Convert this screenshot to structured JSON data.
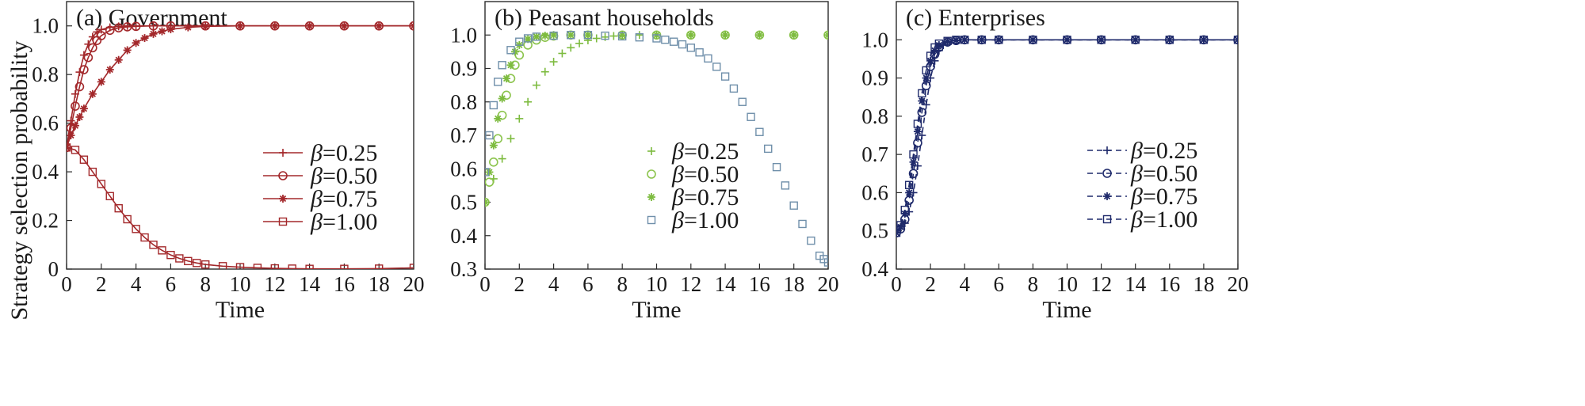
{
  "figure": {
    "ylabel": "Strategy selection probability"
  },
  "chart_data": [
    {
      "type": "line",
      "panel": "a",
      "title": "(a) Government",
      "xlabel": "Time",
      "ylabel": "Strategy selection probability",
      "xlim": [
        0,
        20
      ],
      "ylim": [
        0,
        1.1
      ],
      "xticks": [
        "0",
        "2",
        "4",
        "6",
        "8",
        "10",
        "12",
        "14",
        "16",
        "18",
        "20"
      ],
      "yticks": [
        "0",
        "0.2",
        "0.4",
        "0.6",
        "0.8",
        "1.0"
      ],
      "color": "#a3282b",
      "legend_position": "center-right",
      "grid": false,
      "series": [
        {
          "name": "β=0.25",
          "marker": "plus",
          "line": "solid",
          "x": [
            0,
            0.25,
            0.5,
            0.75,
            1,
            1.25,
            1.5,
            1.75,
            2,
            2.5,
            3,
            3.5,
            4,
            5,
            6,
            8,
            10,
            12,
            14,
            16,
            18,
            20
          ],
          "y": [
            0.5,
            0.61,
            0.72,
            0.81,
            0.88,
            0.925,
            0.955,
            0.975,
            0.985,
            0.994,
            0.998,
            1.0,
            1.0,
            1.0,
            1.0,
            1.0,
            1.0,
            1.0,
            1.0,
            1.0,
            1.0,
            1.0
          ]
        },
        {
          "name": "β=0.50",
          "marker": "circle",
          "line": "solid",
          "x": [
            0,
            0.25,
            0.5,
            0.75,
            1,
            1.25,
            1.5,
            1.75,
            2,
            2.5,
            3,
            3.5,
            4,
            5,
            6,
            8,
            10,
            12,
            14,
            16,
            18,
            20
          ],
          "y": [
            0.5,
            0.58,
            0.67,
            0.75,
            0.82,
            0.87,
            0.91,
            0.94,
            0.96,
            0.982,
            0.992,
            0.996,
            0.998,
            1.0,
            1.0,
            1.0,
            1.0,
            1.0,
            1.0,
            1.0,
            1.0,
            1.0
          ]
        },
        {
          "name": "β=0.75",
          "marker": "star",
          "line": "solid",
          "x": [
            0,
            0.25,
            0.5,
            0.75,
            1,
            1.5,
            2,
            2.5,
            3,
            3.5,
            4,
            4.5,
            5,
            5.5,
            6,
            7,
            8,
            10,
            12,
            14,
            16,
            18,
            20
          ],
          "y": [
            0.5,
            0.55,
            0.59,
            0.625,
            0.66,
            0.72,
            0.77,
            0.82,
            0.86,
            0.9,
            0.93,
            0.95,
            0.967,
            0.978,
            0.986,
            0.994,
            0.998,
            1.0,
            1.0,
            1.0,
            1.0,
            1.0,
            1.0
          ]
        },
        {
          "name": "β=1.00",
          "marker": "square",
          "line": "solid",
          "x": [
            0,
            0.5,
            1,
            1.5,
            2,
            2.5,
            3,
            3.5,
            4,
            4.5,
            5,
            5.5,
            6,
            6.5,
            7,
            7.5,
            8,
            9,
            10,
            11,
            12,
            13,
            14,
            16,
            18,
            20
          ],
          "y": [
            0.5,
            0.49,
            0.45,
            0.4,
            0.35,
            0.3,
            0.25,
            0.205,
            0.165,
            0.13,
            0.1,
            0.077,
            0.058,
            0.044,
            0.033,
            0.025,
            0.019,
            0.012,
            0.008,
            0.005,
            0.003,
            0.002,
            0.001,
            0.001,
            0.002,
            0.005
          ]
        }
      ]
    },
    {
      "type": "scatter",
      "panel": "b",
      "title": "(b) Peasant households",
      "xlabel": "Time",
      "xlim": [
        0,
        20
      ],
      "ylim": [
        0.3,
        1.1
      ],
      "xticks": [
        "0",
        "2",
        "4",
        "6",
        "8",
        "10",
        "12",
        "14",
        "16",
        "18",
        "20"
      ],
      "yticks": [
        "0.3",
        "0.4",
        "0.5",
        "0.6",
        "0.7",
        "0.8",
        "0.9",
        "1.0"
      ],
      "legend_position": "center",
      "grid": false,
      "series": [
        {
          "name": "β=0.25",
          "marker": "plus",
          "color": "#7dbb3f",
          "x": [
            0,
            0.5,
            1,
            1.5,
            2,
            2.5,
            3,
            3.5,
            4,
            4.5,
            5,
            5.5,
            6,
            6.5,
            7,
            7.5,
            8,
            9,
            10,
            12,
            14,
            16,
            18,
            20
          ],
          "y": [
            0.5,
            0.57,
            0.63,
            0.69,
            0.75,
            0.8,
            0.85,
            0.89,
            0.92,
            0.945,
            0.962,
            0.975,
            0.984,
            0.99,
            0.994,
            0.997,
            0.998,
            1.0,
            1.0,
            1.0,
            1.0,
            1.0,
            1.0,
            1.0
          ]
        },
        {
          "name": "β=0.50",
          "marker": "circle",
          "color": "#8cc44d",
          "x": [
            0,
            0.25,
            0.5,
            0.75,
            1,
            1.25,
            1.5,
            1.75,
            2,
            2.5,
            3,
            3.5,
            4,
            5,
            6,
            8,
            10,
            12,
            14,
            16,
            18,
            20
          ],
          "y": [
            0.5,
            0.56,
            0.62,
            0.69,
            0.76,
            0.82,
            0.87,
            0.91,
            0.94,
            0.97,
            0.985,
            0.993,
            0.997,
            1.0,
            1.0,
            1.0,
            1.0,
            1.0,
            1.0,
            1.0,
            1.0,
            1.0
          ]
        },
        {
          "name": "β=0.75",
          "marker": "star",
          "color": "#7dbb3f",
          "x": [
            0,
            0.25,
            0.5,
            0.75,
            1,
            1.25,
            1.5,
            1.75,
            2,
            2.5,
            3,
            3.5,
            4,
            5,
            6,
            8,
            10,
            12,
            14,
            16,
            18,
            20
          ],
          "y": [
            0.5,
            0.59,
            0.67,
            0.75,
            0.81,
            0.87,
            0.91,
            0.95,
            0.97,
            0.988,
            0.995,
            0.998,
            1.0,
            1.0,
            1.0,
            1.0,
            1.0,
            1.0,
            1.0,
            1.0,
            1.0,
            1.0
          ]
        },
        {
          "name": "β=1.00",
          "marker": "square",
          "color": "#6f8faa",
          "x": [
            0,
            0.25,
            0.5,
            0.75,
            1,
            1.5,
            2,
            2.5,
            3,
            4,
            5,
            6,
            7,
            8,
            9,
            10,
            10.5,
            11,
            11.5,
            12,
            12.5,
            13,
            13.5,
            14,
            14.5,
            15,
            15.5,
            16,
            16.5,
            17,
            17.5,
            18,
            18.5,
            19,
            19.5,
            19.75,
            20
          ],
          "y": [
            0.59,
            0.7,
            0.79,
            0.86,
            0.91,
            0.955,
            0.98,
            0.99,
            0.995,
            0.998,
            1.0,
            1.0,
            0.998,
            0.996,
            0.993,
            0.99,
            0.986,
            0.98,
            0.972,
            0.962,
            0.948,
            0.93,
            0.905,
            0.876,
            0.84,
            0.8,
            0.755,
            0.71,
            0.66,
            0.605,
            0.55,
            0.49,
            0.435,
            0.385,
            0.34,
            0.33,
            0.32
          ]
        }
      ]
    },
    {
      "type": "line",
      "panel": "c",
      "title": "(c) Enterprises",
      "xlabel": "Time",
      "xlim": [
        0,
        20
      ],
      "ylim": [
        0.4,
        1.1
      ],
      "xticks": [
        "0",
        "2",
        "4",
        "6",
        "8",
        "10",
        "12",
        "14",
        "16",
        "18",
        "20"
      ],
      "yticks": [
        "0.4",
        "0.5",
        "0.6",
        "0.7",
        "0.8",
        "0.9",
        "1.0"
      ],
      "color": "#1f2a6b",
      "legend_position": "center-right",
      "grid": false,
      "series": [
        {
          "name": "β=0.25",
          "marker": "plus",
          "line": "dashed",
          "x": [
            0,
            0.25,
            0.5,
            0.75,
            1,
            1.25,
            1.5,
            1.75,
            2,
            2.25,
            2.5,
            2.75,
            3,
            3.5,
            4,
            5,
            6,
            8,
            10,
            12,
            14,
            16,
            18,
            20
          ],
          "y": [
            0.5,
            0.505,
            0.52,
            0.55,
            0.6,
            0.67,
            0.75,
            0.83,
            0.9,
            0.945,
            0.972,
            0.986,
            0.993,
            0.998,
            1.0,
            1.0,
            1.0,
            1.0,
            1.0,
            1.0,
            1.0,
            1.0,
            1.0,
            1.0
          ]
        },
        {
          "name": "β=0.50",
          "marker": "circle",
          "line": "dashed",
          "x": [
            0,
            0.25,
            0.5,
            0.75,
            1,
            1.25,
            1.5,
            1.75,
            2,
            2.25,
            2.5,
            3,
            3.5,
            4,
            5,
            6,
            8,
            10,
            12,
            14,
            16,
            18,
            20
          ],
          "y": [
            0.495,
            0.505,
            0.53,
            0.58,
            0.65,
            0.73,
            0.81,
            0.88,
            0.93,
            0.962,
            0.98,
            0.994,
            0.998,
            1.0,
            1.0,
            1.0,
            1.0,
            1.0,
            1.0,
            1.0,
            1.0,
            1.0,
            1.0
          ]
        },
        {
          "name": "β=0.75",
          "marker": "star",
          "line": "dashed",
          "x": [
            0,
            0.25,
            0.5,
            0.75,
            1,
            1.25,
            1.5,
            1.75,
            2,
            2.25,
            2.5,
            3,
            3.5,
            4,
            5,
            6,
            8,
            10,
            12,
            14,
            16,
            18,
            20
          ],
          "y": [
            0.495,
            0.51,
            0.545,
            0.6,
            0.68,
            0.76,
            0.84,
            0.9,
            0.945,
            0.972,
            0.986,
            0.996,
            0.999,
            1.0,
            1.0,
            1.0,
            1.0,
            1.0,
            1.0,
            1.0,
            1.0,
            1.0,
            1.0
          ]
        },
        {
          "name": "β=1.00",
          "marker": "square",
          "line": "dashed",
          "x": [
            0,
            0.25,
            0.5,
            0.75,
            1,
            1.25,
            1.5,
            1.75,
            2,
            2.25,
            2.5,
            3,
            3.5,
            4,
            5,
            6,
            8,
            10,
            12,
            14,
            16,
            18,
            20
          ],
          "y": [
            0.495,
            0.515,
            0.555,
            0.62,
            0.7,
            0.78,
            0.86,
            0.92,
            0.958,
            0.98,
            0.99,
            0.997,
            1.0,
            1.0,
            1.0,
            1.0,
            1.0,
            1.0,
            1.0,
            1.0,
            1.0,
            1.0,
            1.0
          ]
        }
      ]
    }
  ]
}
